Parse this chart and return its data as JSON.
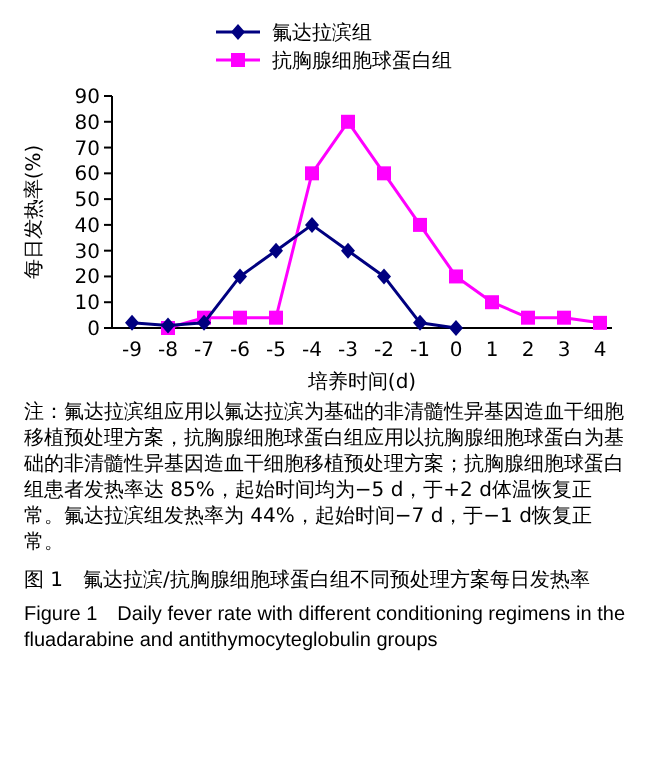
{
  "chart_data": {
    "type": "line",
    "title": "图 1　氟达拉滨/抗胸腺细胞球蛋白组不同预处理方案每日发热率",
    "subtitle": "Figure 1　Daily fever rate with different conditioning regimens in the fluadarabine and antithymocyteglobulin groups",
    "xlabel": "培养时间(d)",
    "ylabel": "每日发热率(%)",
    "categories": [
      "-9",
      "-8",
      "-7",
      "-6",
      "-5",
      "-4",
      "-3",
      "-2",
      "-1",
      "0",
      "1",
      "2",
      "3",
      "4"
    ],
    "series": [
      {
        "name": "氟达拉滨组",
        "color": "#000080",
        "marker": "diamond",
        "values": [
          2,
          1,
          2,
          20,
          30,
          40,
          30,
          20,
          2,
          0,
          null,
          null,
          null,
          null
        ]
      },
      {
        "name": "抗胸腺细胞球蛋白组",
        "color": "#ff00ff",
        "marker": "square",
        "values": [
          null,
          0,
          4,
          4,
          4,
          60,
          80,
          60,
          40,
          20,
          10,
          4,
          4,
          2
        ]
      }
    ],
    "ylim": [
      0,
      90
    ],
    "yticks": [
      0,
      10,
      20,
      30,
      40,
      50,
      60,
      70,
      80,
      90
    ],
    "grid": false,
    "legend": "top",
    "annotations": [
      "注：氟达拉滨组应用以氟达拉滨为基础的非清髓性异基因造血干细胞移植预处理方案，抗胸腺细胞球蛋白组应用以抗胸腺细胞球蛋白为基础的非清髓性异基因造血干细胞移植预处理方案；抗胸腺细胞球蛋白组患者发热率达 85%，起始时间均为−5 d，于+2 d体温恢复正常。氟达拉滨组发热率为 44%，起始时间−7 d，于−1 d恢复正常。"
    ]
  }
}
